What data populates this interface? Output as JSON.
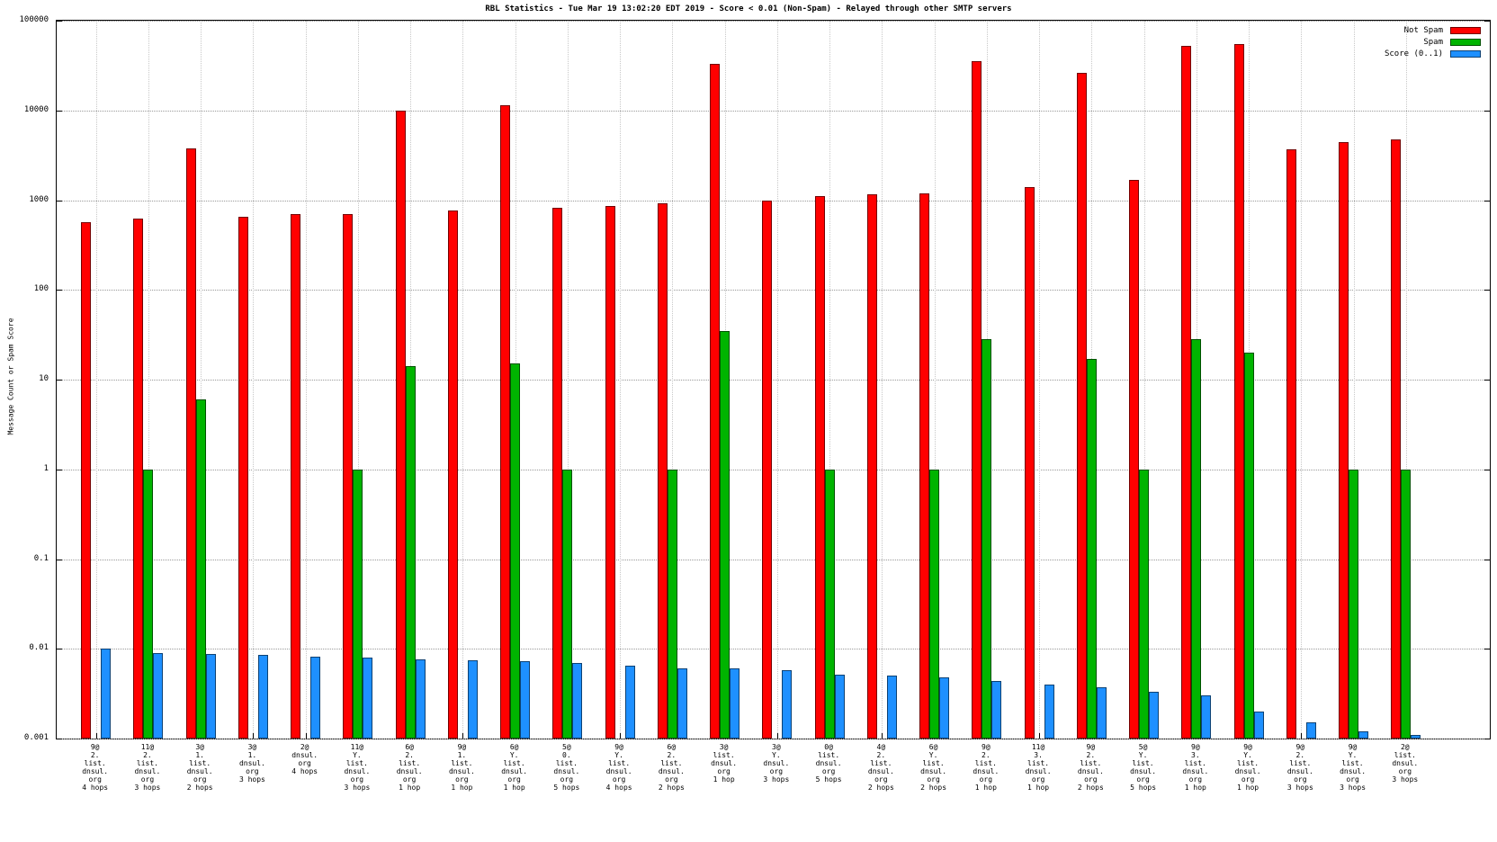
{
  "title": "RBL Statistics - Tue Mar 19 13:02:20 EDT 2019 - Score < 0.01 (Non-Spam) - Relayed through other SMTP servers",
  "ylabel": "Message Count or Spam Score",
  "legend": [
    {
      "label": "Not Spam",
      "color": "#ff0000"
    },
    {
      "label": "Spam",
      "color": "#00b400"
    },
    {
      "label": "Score (0..1)",
      "color": "#1e90ff"
    }
  ],
  "chart_data": {
    "type": "bar",
    "yscale": "log",
    "ylim": [
      0.001,
      100000
    ],
    "grid": true,
    "legend_position": "top-right",
    "yticks": [
      0.001,
      0.01,
      0.1,
      1,
      10,
      100,
      1000,
      10000,
      100000
    ],
    "ytick_labels": [
      "0.001",
      "0.01",
      "0.1",
      "1",
      "10",
      "100",
      "1000",
      "10000",
      "100000"
    ],
    "categories": [
      [
        "9@",
        "2.",
        "list.",
        "dnsul.",
        "org",
        "4 hops"
      ],
      [
        "11@",
        "2.",
        "list.",
        "dnsul.",
        "org",
        "3 hops"
      ],
      [
        "3@",
        "1.",
        "list.",
        "dnsul.",
        "org",
        "2 hops"
      ],
      [
        "3@",
        "1.",
        "dnsul.",
        "org",
        "3 hops"
      ],
      [
        "2@",
        "dnsul.",
        "org",
        "4 hops"
      ],
      [
        "11@",
        "Y.",
        "list.",
        "dnsul.",
        "org",
        "3 hops"
      ],
      [
        "6@",
        "2.",
        "list.",
        "dnsul.",
        "org",
        "1 hop"
      ],
      [
        "9@",
        "1.",
        "list.",
        "dnsul.",
        "org",
        "1 hop"
      ],
      [
        "6@",
        "Y.",
        "list.",
        "dnsul.",
        "org",
        "1 hop"
      ],
      [
        "5@",
        "0.",
        "list.",
        "dnsul.",
        "org",
        "5 hops"
      ],
      [
        "9@",
        "Y.",
        "list.",
        "dnsul.",
        "org",
        "4 hops"
      ],
      [
        "6@",
        "2.",
        "list.",
        "dnsul.",
        "org",
        "2 hops"
      ],
      [
        "3@",
        "list.",
        "dnsul.",
        "org",
        "1 hop"
      ],
      [
        "3@",
        "Y.",
        "dnsul.",
        "org",
        "3 hops"
      ],
      [
        "0@",
        "list.",
        "dnsul.",
        "org",
        "5 hops"
      ],
      [
        "4@",
        "2.",
        "list.",
        "dnsul.",
        "org",
        "2 hops"
      ],
      [
        "6@",
        "Y.",
        "list.",
        "dnsul.",
        "org",
        "2 hops"
      ],
      [
        "9@",
        "2.",
        "list.",
        "dnsul.",
        "org",
        "1 hop"
      ],
      [
        "11@",
        "3.",
        "list.",
        "dnsul.",
        "org",
        "1 hop"
      ],
      [
        "9@",
        "2.",
        "list.",
        "dnsul.",
        "org",
        "2 hops"
      ],
      [
        "5@",
        "Y.",
        "list.",
        "dnsul.",
        "org",
        "5 hops"
      ],
      [
        "9@",
        "3.",
        "list.",
        "dnsul.",
        "org",
        "1 hop"
      ],
      [
        "9@",
        "Y.",
        "list.",
        "dnsul.",
        "org",
        "1 hop"
      ],
      [
        "9@",
        "2.",
        "list.",
        "dnsul.",
        "org",
        "3 hops"
      ],
      [
        "9@",
        "Y.",
        "list.",
        "dnsul.",
        "org",
        "3 hops"
      ],
      [
        "2@",
        "list.",
        "dnsul.",
        "org",
        "3 hops"
      ]
    ],
    "series": [
      {
        "name": "Not Spam",
        "color": "#ff0000",
        "values": [
          570,
          620,
          3800,
          650,
          700,
          700,
          10000,
          760,
          11500,
          820,
          870,
          920,
          33000,
          980,
          1100,
          1150,
          1180,
          35000,
          1400,
          26000,
          1700,
          52000,
          55000,
          3700,
          4400,
          4700
        ]
      },
      {
        "name": "Spam",
        "color": "#00b400",
        "values": [
          null,
          1,
          6,
          null,
          null,
          1,
          14,
          null,
          15,
          1,
          null,
          1,
          35,
          null,
          1,
          null,
          1,
          28,
          null,
          17,
          1,
          28,
          20,
          null,
          1,
          1
        ]
      },
      {
        "name": "Score (0..1)",
        "color": "#1e90ff",
        "values": [
          0.01,
          0.009,
          0.0088,
          0.0085,
          0.0082,
          0.008,
          0.0077,
          0.0075,
          0.0072,
          0.007,
          0.0065,
          0.006,
          0.006,
          0.0058,
          0.0052,
          0.005,
          0.0048,
          0.0044,
          0.004,
          0.0037,
          0.0033,
          0.003,
          0.002,
          0.0015,
          0.0012,
          0.0011
        ]
      }
    ]
  }
}
